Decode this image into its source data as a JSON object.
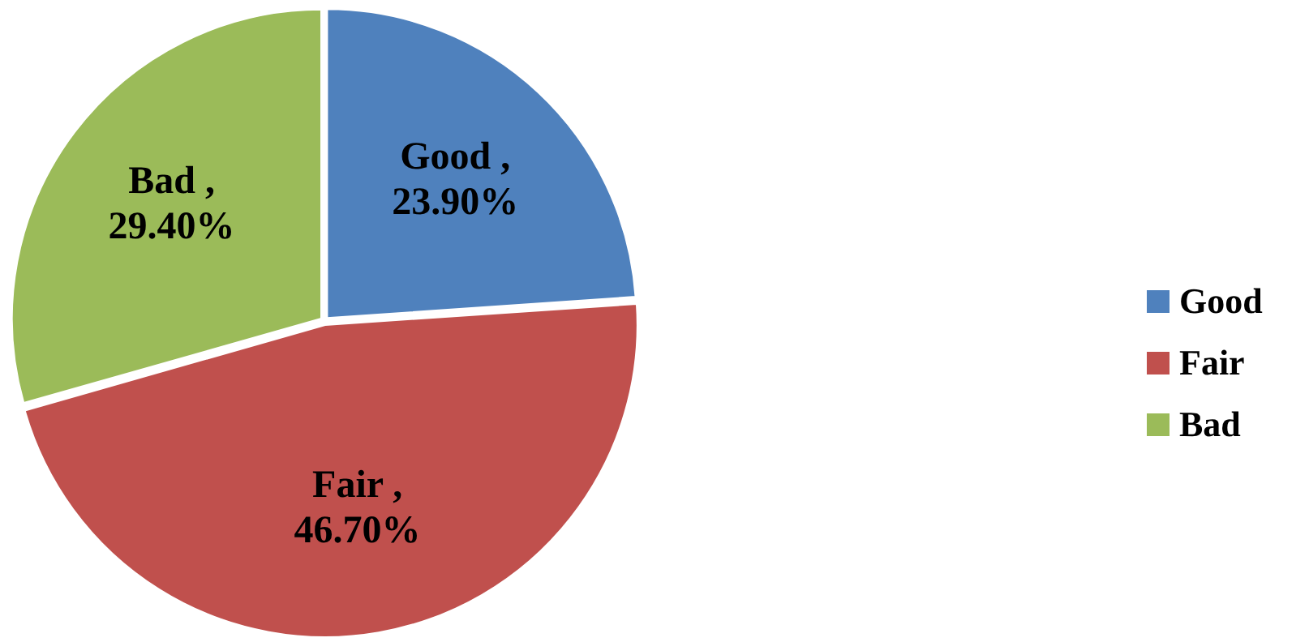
{
  "chart_data": {
    "type": "pie",
    "categories": [
      "Good",
      "Fair",
      "Bad"
    ],
    "values": [
      23.9,
      46.7,
      29.4
    ],
    "colors": [
      "#4f81bd",
      "#c0504d",
      "#9bbb59"
    ],
    "value_labels": [
      "Good , 23.90%",
      "Fair , 46.70%",
      "Bad , 29.40%"
    ],
    "legend": "right"
  }
}
